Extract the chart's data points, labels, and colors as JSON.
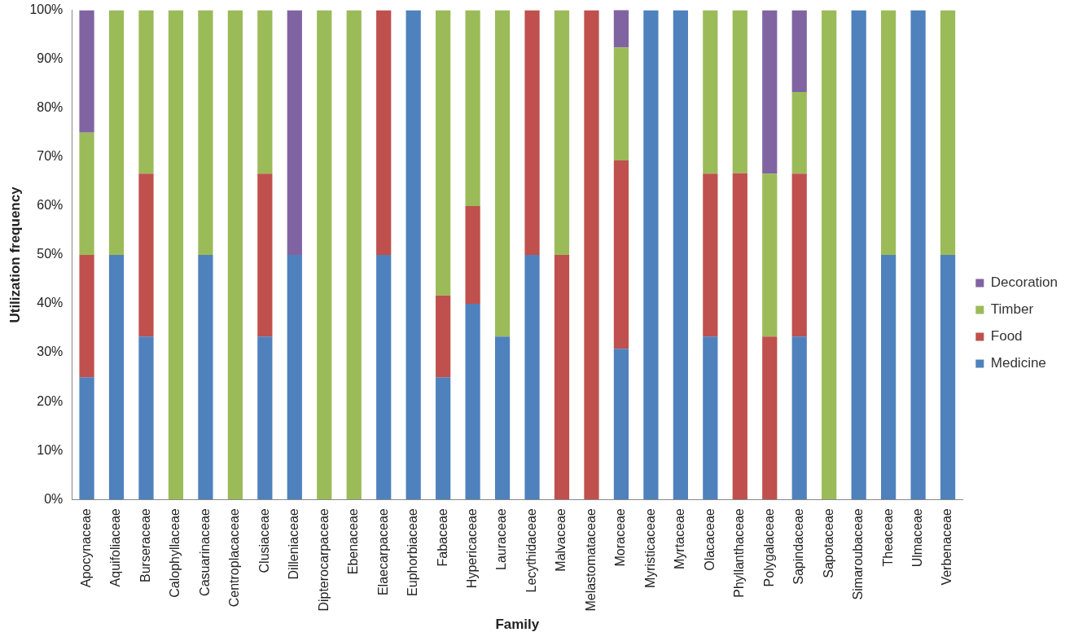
{
  "chart_data": {
    "type": "bar",
    "stacked": true,
    "xlabel": "Family",
    "ylabel": "Utilization frequency",
    "categories": [
      "Apocynaceae",
      "Aquifoliaceae",
      "Burseraceae",
      "Calophyllaceae",
      "Casuarinaceae",
      "Centroplacaceae",
      "Clusiaceae",
      "Dilleniaceae",
      "Dipterocarpaceae",
      "Ebenaceae",
      "Elaecarpaceae",
      "Euphorbiaceae",
      "Fabaceae",
      "Hypericaceae",
      "Lauraceae",
      "Lecythidaceae",
      "Malvaceae",
      "Melastomataceae",
      "Moraceae",
      "Myristicaceae",
      "Myrtaceae",
      "Olacaceae",
      "Phyllanthaceae",
      "Polygalaceae",
      "Sapindaceae",
      "Sapotaceae",
      "Simaroubaceae",
      "Theaceae",
      "Ulmaceae",
      "Verbenaceae"
    ],
    "series": [
      {
        "name": "Medicine",
        "color": "#4f81bd",
        "values": [
          25,
          50,
          33.3,
          0,
          50,
          0,
          33.3,
          50,
          0,
          0,
          50,
          100,
          25,
          40,
          33.3,
          50,
          0,
          0,
          30.8,
          100,
          100,
          33.3,
          0,
          0,
          33.3,
          0,
          100,
          50,
          100,
          50
        ]
      },
      {
        "name": "Food",
        "color": "#c0504d",
        "values": [
          25,
          0,
          33.3,
          0,
          0,
          0,
          33.3,
          0,
          0,
          0,
          50,
          0,
          16.7,
          20,
          0,
          50,
          50,
          100,
          38.5,
          0,
          0,
          33.3,
          66.7,
          33.3,
          33.3,
          0,
          0,
          0,
          0,
          0
        ]
      },
      {
        "name": "Timber",
        "color": "#9bbb59",
        "values": [
          25,
          50,
          33.4,
          100,
          50,
          100,
          33.4,
          0,
          100,
          100,
          0,
          0,
          58.3,
          40,
          66.7,
          0,
          50,
          0,
          23.1,
          0,
          0,
          33.4,
          33.3,
          33.3,
          16.7,
          100,
          0,
          50,
          0,
          50
        ]
      },
      {
        "name": "Decoration",
        "color": "#8064a2",
        "values": [
          25,
          0,
          0,
          0,
          0,
          0,
          0,
          50,
          0,
          0,
          0,
          0,
          0,
          0,
          0,
          0,
          0,
          0,
          7.7,
          0,
          0,
          0,
          0,
          33.4,
          16.7,
          0,
          0,
          0,
          0,
          0
        ]
      }
    ],
    "ylim": [
      0,
      100
    ],
    "yticks": [
      {
        "value": 0,
        "label": "0%"
      },
      {
        "value": 10,
        "label": "10%"
      },
      {
        "value": 20,
        "label": "20%"
      },
      {
        "value": 30,
        "label": "30%"
      },
      {
        "value": 40,
        "label": "40%"
      },
      {
        "value": 50,
        "label": "50%"
      },
      {
        "value": 60,
        "label": "60%"
      },
      {
        "value": 70,
        "label": "70%"
      },
      {
        "value": 80,
        "label": "80%"
      },
      {
        "value": 90,
        "label": "90%"
      },
      {
        "value": 100,
        "label": "100%"
      }
    ],
    "grid": false,
    "legend": "right"
  }
}
